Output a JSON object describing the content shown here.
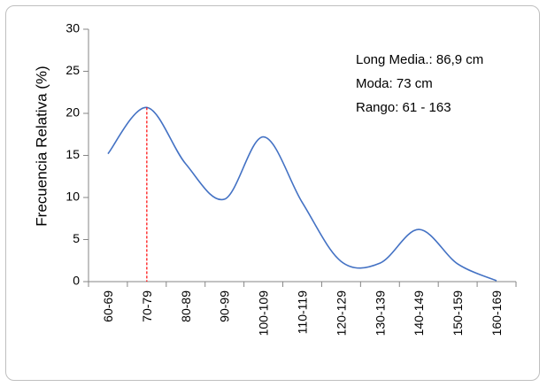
{
  "chart_data": {
    "type": "line",
    "title": "",
    "xlabel": "",
    "ylabel": "Frecuencia Relativa (%)",
    "categories": [
      "60-69",
      "70-79",
      "80-89",
      "90-99",
      "100-109",
      "110-119",
      "120-129",
      "130-139",
      "140-149",
      "150-159",
      "160-169"
    ],
    "series": [
      {
        "values": [
          15.2,
          20.7,
          14.0,
          9.8,
          17.2,
          9.4,
          2.4,
          2.2,
          6.2,
          2.1,
          0.1
        ],
        "color": "#4472c4"
      }
    ],
    "ylim": [
      0,
      30
    ],
    "yticks": [
      0,
      5,
      10,
      15,
      20,
      25,
      30
    ],
    "grid": false,
    "smooth": true,
    "mode_marker": {
      "category": "70-79",
      "value": 20.7,
      "color": "#ff0000",
      "style": "dashed"
    },
    "annotations": [
      "Long Media.: 86,9 cm",
      "Moda: 73 cm",
      "Rango: 61 - 163"
    ]
  }
}
